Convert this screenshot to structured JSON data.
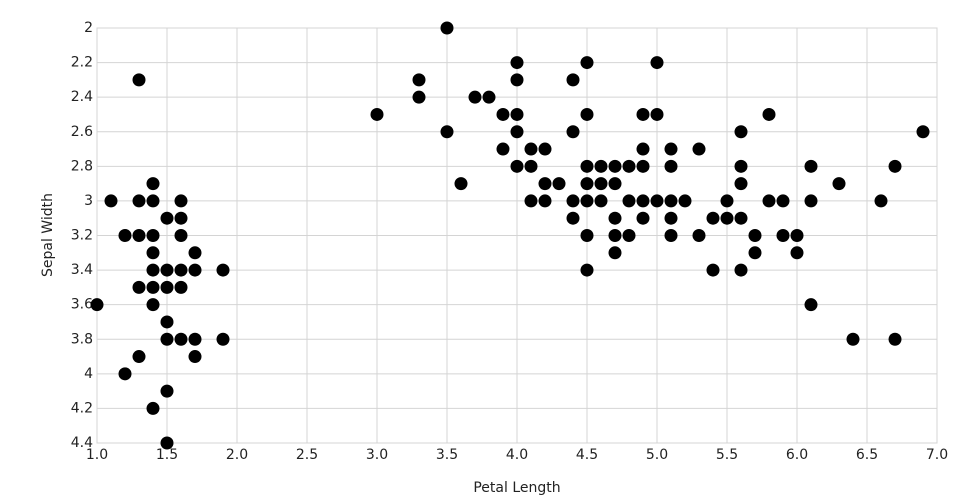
{
  "chart_data": {
    "type": "scatter",
    "x_label": "Petal Length",
    "y_label": "Sepal Width",
    "color": "#000000",
    "grid": true,
    "xlim": [
      1,
      7
    ],
    "ylim": [
      4.4,
      2
    ],
    "xticks": [
      {
        "value": 1,
        "label": "1.0"
      },
      1.5,
      {
        "value": 2,
        "label": "2.0"
      },
      2.5,
      {
        "value": 3,
        "label": "3.0"
      },
      3.5,
      {
        "value": 4,
        "label": "4.0"
      },
      4.5,
      {
        "value": 5,
        "label": "5.0"
      },
      5.5,
      {
        "value": 6,
        "label": "6.0"
      },
      6.5,
      {
        "value": 7,
        "label": "7.0"
      }
    ],
    "yticks": [
      2,
      2.2,
      2.4,
      2.6,
      2.8,
      3,
      3.2,
      3.4,
      3.6,
      3.8,
      4,
      4.2,
      4.4
    ],
    "x": [
      1.3,
      1.1,
      1.0,
      1.2,
      1.2,
      1.3,
      1.3,
      1.3,
      1.3,
      1.4,
      1.4,
      1.4,
      1.4,
      1.4,
      1.4,
      1.4,
      1.4,
      1.5,
      1.5,
      1.5,
      1.5,
      1.5,
      1.5,
      1.5,
      1.6,
      1.6,
      1.6,
      1.6,
      1.6,
      1.6,
      1.7,
      1.7,
      1.7,
      1.7,
      1.9,
      1.9,
      3.0,
      3.3,
      3.3,
      3.5,
      3.5,
      3.6,
      3.7,
      3.8,
      3.9,
      3.9,
      4.0,
      4.0,
      4.0,
      4.0,
      4.0,
      4.1,
      4.1,
      4.1,
      4.2,
      4.2,
      4.2,
      4.3,
      4.4,
      4.4,
      4.4,
      4.4,
      4.5,
      4.5,
      4.5,
      4.5,
      4.5,
      4.5,
      4.5,
      4.6,
      4.6,
      4.6,
      4.7,
      4.7,
      4.7,
      4.7,
      4.7,
      4.8,
      4.8,
      4.8,
      4.9,
      4.9,
      4.9,
      4.9,
      4.9,
      5.0,
      5.0,
      5.0,
      5.1,
      5.1,
      5.1,
      5.1,
      5.1,
      5.2,
      5.3,
      5.3,
      5.4,
      5.4,
      5.5,
      5.5,
      5.6,
      5.6,
      5.6,
      5.6,
      5.6,
      5.7,
      5.7,
      5.8,
      5.8,
      5.9,
      5.9,
      6.0,
      6.0,
      6.1,
      6.1,
      6.1,
      6.3,
      6.4,
      6.6,
      6.7,
      6.7,
      6.9
    ],
    "values": [
      2.3,
      3.0,
      3.6,
      3.2,
      4.0,
      3.0,
      3.2,
      3.5,
      3.9,
      2.9,
      3.0,
      3.2,
      3.3,
      3.4,
      3.5,
      3.6,
      4.2,
      3.1,
      3.4,
      3.5,
      3.7,
      3.8,
      4.1,
      4.4,
      3.0,
      3.1,
      3.2,
      3.4,
      3.5,
      3.8,
      3.3,
      3.4,
      3.8,
      3.9,
      3.4,
      3.8,
      2.5,
      2.3,
      2.4,
      2.0,
      2.6,
      2.9,
      2.4,
      2.4,
      2.5,
      2.7,
      2.2,
      2.3,
      2.5,
      2.6,
      2.8,
      2.7,
      2.8,
      3.0,
      2.7,
      2.9,
      3.0,
      2.9,
      2.3,
      2.6,
      3.0,
      3.1,
      2.2,
      2.5,
      2.8,
      2.9,
      3.0,
      3.2,
      3.4,
      2.8,
      2.9,
      3.0,
      2.8,
      2.9,
      3.1,
      3.2,
      3.3,
      2.8,
      3.0,
      3.2,
      2.5,
      2.7,
      2.8,
      3.0,
      3.1,
      2.2,
      2.5,
      3.0,
      2.7,
      2.8,
      3.0,
      3.1,
      3.2,
      3.0,
      2.7,
      3.2,
      3.1,
      3.4,
      3.0,
      3.1,
      2.6,
      2.8,
      2.9,
      3.1,
      3.4,
      3.2,
      3.3,
      2.5,
      3.0,
      3.0,
      3.2,
      3.2,
      3.3,
      2.8,
      3.0,
      3.6,
      2.9,
      3.8,
      3.0,
      2.8,
      3.8,
      2.6
    ]
  }
}
